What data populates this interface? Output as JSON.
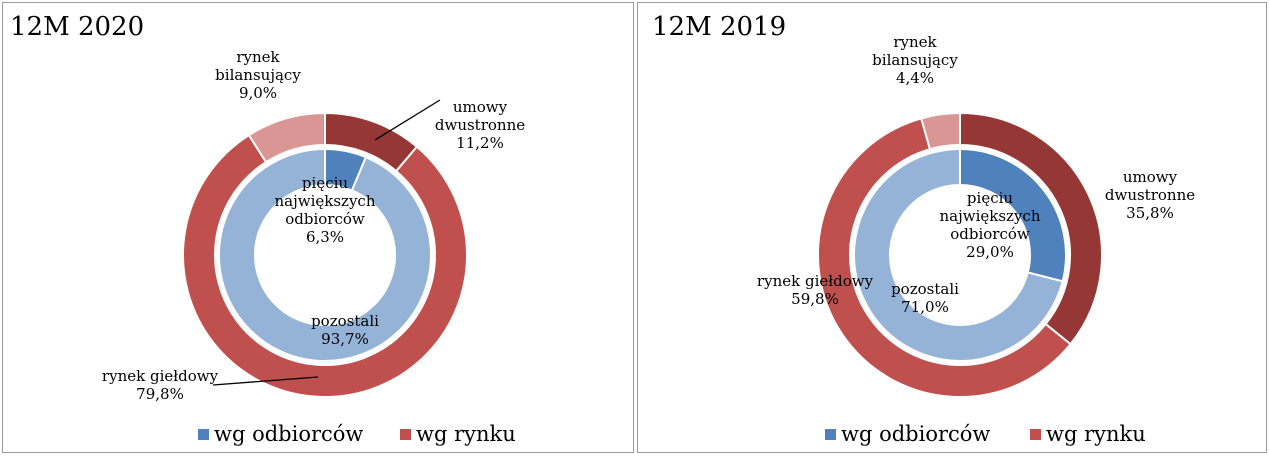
{
  "chart_data": [
    {
      "type": "donut",
      "title": "12M 2020",
      "series": [
        {
          "name": "wg odbiorców",
          "color": "#4f81bd",
          "categories": [
            "pięciu największych odbiorców",
            "pozostali"
          ],
          "colors": [
            "#4f81bd",
            "#95b3d7"
          ],
          "values": [
            6.3,
            93.7
          ],
          "value_labels": [
            "6,3%",
            "93,7%"
          ]
        },
        {
          "name": "wg rynku",
          "color": "#c0504d",
          "categories": [
            "umowy dwustronne",
            "rynek giełdowy",
            "rynek bilansujący"
          ],
          "colors": [
            "#953735",
            "#c0504d",
            "#d99694"
          ],
          "values": [
            11.2,
            79.8,
            9.0
          ],
          "value_labels": [
            "11,2%",
            "79,8%",
            "9,0%"
          ]
        }
      ]
    },
    {
      "type": "donut",
      "title": "12M 2019",
      "series": [
        {
          "name": "wg odbiorców",
          "color": "#4f81bd",
          "categories": [
            "pięciu największych odbiorców",
            "pozostali"
          ],
          "colors": [
            "#4f81bd",
            "#95b3d7"
          ],
          "values": [
            29.0,
            71.0
          ],
          "value_labels": [
            "29,0%",
            "71,0%"
          ]
        },
        {
          "name": "wg rynku",
          "color": "#c0504d",
          "categories": [
            "umowy dwustronne",
            "rynek giełdowy",
            "rynek bilansujący"
          ],
          "colors": [
            "#953735",
            "#c0504d",
            "#d99694"
          ],
          "values": [
            35.8,
            59.8,
            4.4
          ],
          "value_labels": [
            "35,8%",
            "59,8%",
            "4,4%"
          ]
        }
      ]
    }
  ]
}
